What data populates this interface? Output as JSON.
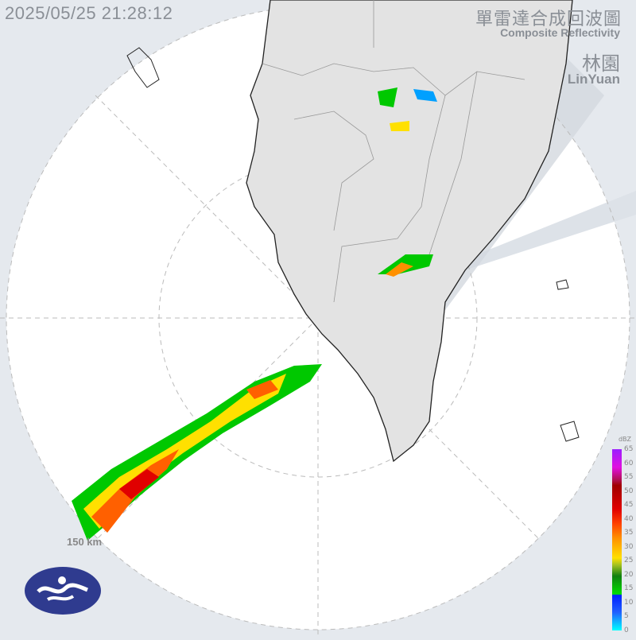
{
  "header": {
    "timestamp": "2025/05/25 21:28:12",
    "title_zh": "單雷達合成回波圖",
    "title_en": "Composite Reflectivity",
    "station_zh": "林園",
    "station_en": "LinYuan"
  },
  "range_label": "150 km",
  "legend": {
    "unit": "dBZ",
    "ticks": [
      "65",
      "60",
      "55",
      "50",
      "45",
      "40",
      "35",
      "30",
      "25",
      "20",
      "15",
      "10",
      "5",
      "0"
    ]
  },
  "colors": {
    "background": "#e5e9ee",
    "radar_area": "#ffffff",
    "land": "#e3e3e3",
    "border": "#222222",
    "logo": "#2f3b8f"
  },
  "logo": "Central Weather Administration emblem"
}
